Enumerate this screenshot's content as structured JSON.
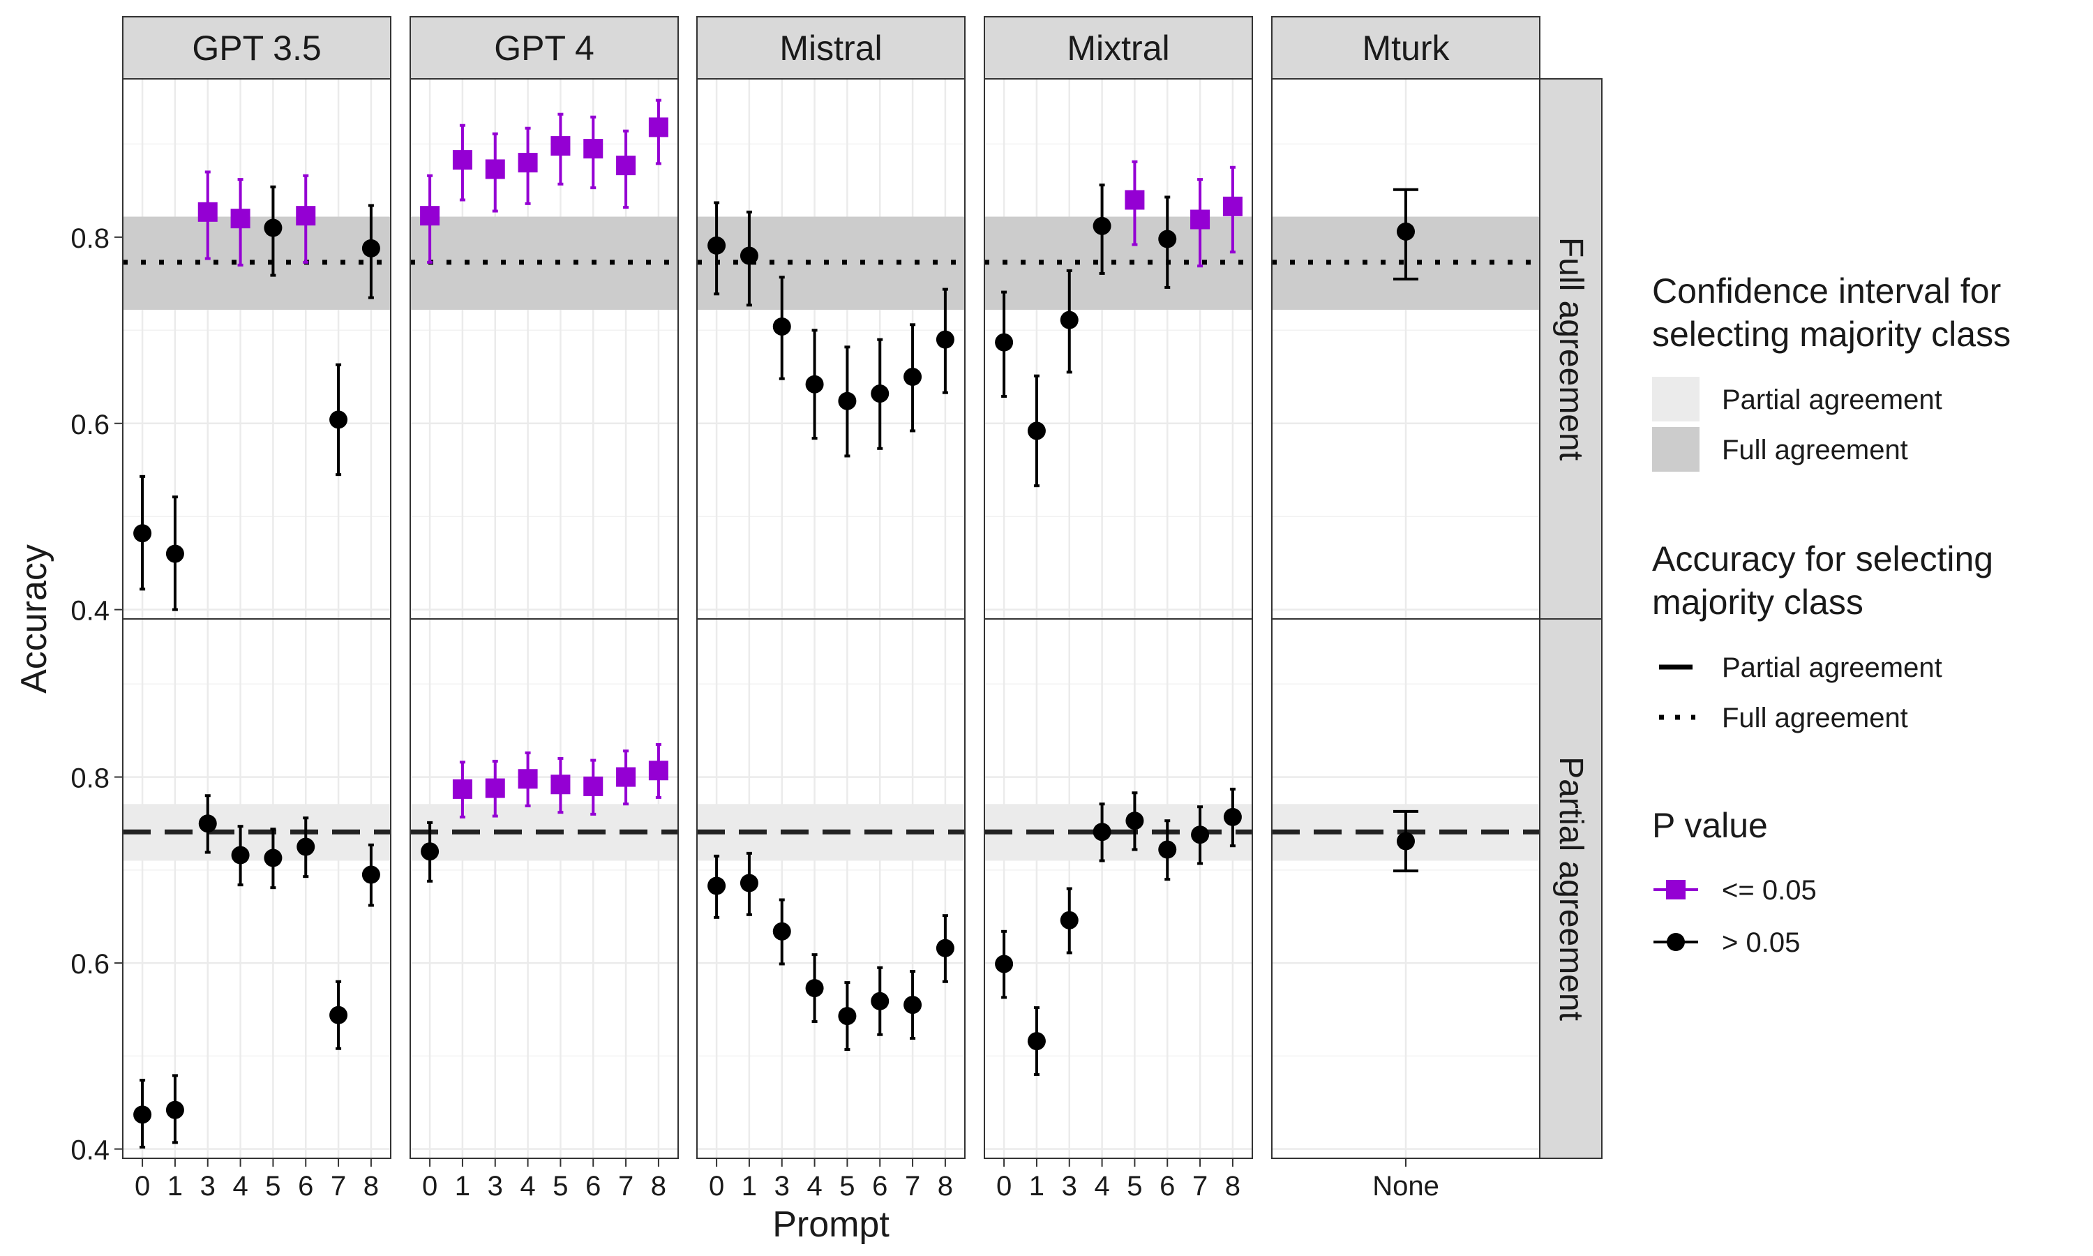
{
  "chart_data": {
    "type": "scatter",
    "ylabel": "Accuracy",
    "xlabel": "Prompt",
    "ylim": [
      0.39,
      0.97
    ],
    "yticks": [
      0.4,
      0.6,
      0.8
    ],
    "ytick_labels": [
      "0.4",
      "0.6",
      "0.8"
    ],
    "grid": true,
    "legend_position": "right",
    "facet_columns": [
      "GPT 3.5",
      "GPT 4",
      "Mistral",
      "Mixtral",
      "Mturk"
    ],
    "facet_rows": [
      "Full agreement",
      "Partial agreement"
    ],
    "colors": {
      "significant": "#9400d3",
      "not_significant": "#000000",
      "band_full": "#cccccc",
      "band_partial": "#ebebeb",
      "strip": "#d9d9d9"
    },
    "reference": {
      "Full agreement": {
        "line": 0.773,
        "band": [
          0.722,
          0.822
        ],
        "linetype": "dotted"
      },
      "Partial agreement": {
        "line": 0.741,
        "band": [
          0.71,
          0.771
        ],
        "linetype": "dashed"
      }
    },
    "panels": [
      {
        "model": "GPT 3.5",
        "row": "Full agreement",
        "x_labels": [
          "0",
          "1",
          "3",
          "4",
          "5",
          "6",
          "7",
          "8"
        ],
        "points": [
          {
            "x": "0",
            "y": 0.482,
            "lo": 0.422,
            "hi": 0.543,
            "sig": false
          },
          {
            "x": "1",
            "y": 0.46,
            "lo": 0.4,
            "hi": 0.521,
            "sig": false
          },
          {
            "x": "3",
            "y": 0.827,
            "lo": 0.777,
            "hi": 0.87,
            "sig": true
          },
          {
            "x": "4",
            "y": 0.82,
            "lo": 0.77,
            "hi": 0.862,
            "sig": true
          },
          {
            "x": "5",
            "y": 0.81,
            "lo": 0.759,
            "hi": 0.854,
            "sig": false
          },
          {
            "x": "6",
            "y": 0.823,
            "lo": 0.773,
            "hi": 0.866,
            "sig": true
          },
          {
            "x": "7",
            "y": 0.604,
            "lo": 0.545,
            "hi": 0.663,
            "sig": false
          },
          {
            "x": "8",
            "y": 0.788,
            "lo": 0.735,
            "hi": 0.834,
            "sig": false
          }
        ]
      },
      {
        "model": "GPT 4",
        "row": "Full agreement",
        "x_labels": [
          "0",
          "1",
          "3",
          "4",
          "5",
          "6",
          "7",
          "8"
        ],
        "points": [
          {
            "x": "0",
            "y": 0.823,
            "lo": 0.773,
            "hi": 0.866,
            "sig": true
          },
          {
            "x": "1",
            "y": 0.883,
            "lo": 0.84,
            "hi": 0.92,
            "sig": true
          },
          {
            "x": "3",
            "y": 0.873,
            "lo": 0.828,
            "hi": 0.911,
            "sig": true
          },
          {
            "x": "4",
            "y": 0.88,
            "lo": 0.836,
            "hi": 0.917,
            "sig": true
          },
          {
            "x": "5",
            "y": 0.898,
            "lo": 0.857,
            "hi": 0.932,
            "sig": true
          },
          {
            "x": "6",
            "y": 0.895,
            "lo": 0.853,
            "hi": 0.929,
            "sig": true
          },
          {
            "x": "7",
            "y": 0.877,
            "lo": 0.832,
            "hi": 0.914,
            "sig": true
          },
          {
            "x": "8",
            "y": 0.918,
            "lo": 0.879,
            "hi": 0.947,
            "sig": true
          }
        ]
      },
      {
        "model": "Mistral",
        "row": "Full agreement",
        "x_labels": [
          "0",
          "1",
          "3",
          "4",
          "5",
          "6",
          "7",
          "8"
        ],
        "points": [
          {
            "x": "0",
            "y": 0.791,
            "lo": 0.739,
            "hi": 0.837,
            "sig": false
          },
          {
            "x": "1",
            "y": 0.78,
            "lo": 0.727,
            "hi": 0.827,
            "sig": false
          },
          {
            "x": "3",
            "y": 0.704,
            "lo": 0.648,
            "hi": 0.757,
            "sig": false
          },
          {
            "x": "4",
            "y": 0.642,
            "lo": 0.584,
            "hi": 0.7,
            "sig": false
          },
          {
            "x": "5",
            "y": 0.624,
            "lo": 0.565,
            "hi": 0.682,
            "sig": false
          },
          {
            "x": "6",
            "y": 0.632,
            "lo": 0.573,
            "hi": 0.69,
            "sig": false
          },
          {
            "x": "7",
            "y": 0.65,
            "lo": 0.592,
            "hi": 0.706,
            "sig": false
          },
          {
            "x": "8",
            "y": 0.69,
            "lo": 0.633,
            "hi": 0.744,
            "sig": false
          }
        ]
      },
      {
        "model": "Mixtral",
        "row": "Full agreement",
        "x_labels": [
          "0",
          "1",
          "3",
          "4",
          "5",
          "6",
          "7",
          "8"
        ],
        "points": [
          {
            "x": "0",
            "y": 0.687,
            "lo": 0.629,
            "hi": 0.741,
            "sig": false
          },
          {
            "x": "1",
            "y": 0.592,
            "lo": 0.533,
            "hi": 0.651,
            "sig": false
          },
          {
            "x": "3",
            "y": 0.711,
            "lo": 0.655,
            "hi": 0.764,
            "sig": false
          },
          {
            "x": "4",
            "y": 0.812,
            "lo": 0.761,
            "hi": 0.856,
            "sig": false
          },
          {
            "x": "5",
            "y": 0.84,
            "lo": 0.792,
            "hi": 0.881,
            "sig": true
          },
          {
            "x": "6",
            "y": 0.798,
            "lo": 0.746,
            "hi": 0.843,
            "sig": false
          },
          {
            "x": "7",
            "y": 0.819,
            "lo": 0.769,
            "hi": 0.862,
            "sig": true
          },
          {
            "x": "8",
            "y": 0.833,
            "lo": 0.784,
            "hi": 0.875,
            "sig": true
          }
        ]
      },
      {
        "model": "Mturk",
        "row": "Full agreement",
        "x_labels": [
          "None"
        ],
        "points": [
          {
            "x": "None",
            "y": 0.806,
            "lo": 0.755,
            "hi": 0.851,
            "sig": false,
            "caps": true
          }
        ]
      },
      {
        "model": "GPT 3.5",
        "row": "Partial agreement",
        "x_labels": [
          "0",
          "1",
          "3",
          "4",
          "5",
          "6",
          "7",
          "8"
        ],
        "points": [
          {
            "x": "0",
            "y": 0.437,
            "lo": 0.402,
            "hi": 0.474,
            "sig": false
          },
          {
            "x": "1",
            "y": 0.442,
            "lo": 0.407,
            "hi": 0.479,
            "sig": false
          },
          {
            "x": "3",
            "y": 0.75,
            "lo": 0.719,
            "hi": 0.78,
            "sig": false
          },
          {
            "x": "4",
            "y": 0.716,
            "lo": 0.684,
            "hi": 0.747,
            "sig": false
          },
          {
            "x": "5",
            "y": 0.713,
            "lo": 0.681,
            "hi": 0.744,
            "sig": false
          },
          {
            "x": "6",
            "y": 0.725,
            "lo": 0.693,
            "hi": 0.756,
            "sig": false
          },
          {
            "x": "7",
            "y": 0.544,
            "lo": 0.508,
            "hi": 0.58,
            "sig": false
          },
          {
            "x": "8",
            "y": 0.695,
            "lo": 0.662,
            "hi": 0.727,
            "sig": false
          }
        ]
      },
      {
        "model": "GPT 4",
        "row": "Partial agreement",
        "x_labels": [
          "0",
          "1",
          "3",
          "4",
          "5",
          "6",
          "7",
          "8"
        ],
        "points": [
          {
            "x": "0",
            "y": 0.72,
            "lo": 0.688,
            "hi": 0.751,
            "sig": false
          },
          {
            "x": "1",
            "y": 0.787,
            "lo": 0.757,
            "hi": 0.816,
            "sig": true
          },
          {
            "x": "3",
            "y": 0.788,
            "lo": 0.758,
            "hi": 0.817,
            "sig": true
          },
          {
            "x": "4",
            "y": 0.798,
            "lo": 0.769,
            "hi": 0.826,
            "sig": true
          },
          {
            "x": "5",
            "y": 0.792,
            "lo": 0.762,
            "hi": 0.82,
            "sig": true
          },
          {
            "x": "6",
            "y": 0.79,
            "lo": 0.76,
            "hi": 0.818,
            "sig": true
          },
          {
            "x": "7",
            "y": 0.8,
            "lo": 0.771,
            "hi": 0.828,
            "sig": true
          },
          {
            "x": "8",
            "y": 0.807,
            "lo": 0.778,
            "hi": 0.835,
            "sig": true
          }
        ]
      },
      {
        "model": "Mistral",
        "row": "Partial agreement",
        "x_labels": [
          "0",
          "1",
          "3",
          "4",
          "5",
          "6",
          "7",
          "8"
        ],
        "points": [
          {
            "x": "0",
            "y": 0.683,
            "lo": 0.649,
            "hi": 0.715,
            "sig": false
          },
          {
            "x": "1",
            "y": 0.686,
            "lo": 0.652,
            "hi": 0.718,
            "sig": false
          },
          {
            "x": "3",
            "y": 0.634,
            "lo": 0.599,
            "hi": 0.668,
            "sig": false
          },
          {
            "x": "4",
            "y": 0.573,
            "lo": 0.537,
            "hi": 0.609,
            "sig": false
          },
          {
            "x": "5",
            "y": 0.543,
            "lo": 0.507,
            "hi": 0.579,
            "sig": false
          },
          {
            "x": "6",
            "y": 0.559,
            "lo": 0.523,
            "hi": 0.595,
            "sig": false
          },
          {
            "x": "7",
            "y": 0.555,
            "lo": 0.519,
            "hi": 0.591,
            "sig": false
          },
          {
            "x": "8",
            "y": 0.616,
            "lo": 0.58,
            "hi": 0.651,
            "sig": false
          }
        ]
      },
      {
        "model": "Mixtral",
        "row": "Partial agreement",
        "x_labels": [
          "0",
          "1",
          "3",
          "4",
          "5",
          "6",
          "7",
          "8"
        ],
        "points": [
          {
            "x": "0",
            "y": 0.599,
            "lo": 0.563,
            "hi": 0.634,
            "sig": false
          },
          {
            "x": "1",
            "y": 0.516,
            "lo": 0.48,
            "hi": 0.552,
            "sig": false
          },
          {
            "x": "3",
            "y": 0.646,
            "lo": 0.611,
            "hi": 0.68,
            "sig": false
          },
          {
            "x": "4",
            "y": 0.741,
            "lo": 0.71,
            "hi": 0.771,
            "sig": false
          },
          {
            "x": "5",
            "y": 0.753,
            "lo": 0.722,
            "hi": 0.783,
            "sig": false
          },
          {
            "x": "6",
            "y": 0.722,
            "lo": 0.69,
            "hi": 0.753,
            "sig": false
          },
          {
            "x": "7",
            "y": 0.738,
            "lo": 0.707,
            "hi": 0.768,
            "sig": false
          },
          {
            "x": "8",
            "y": 0.757,
            "lo": 0.726,
            "hi": 0.787,
            "sig": false
          }
        ]
      },
      {
        "model": "Mturk",
        "row": "Partial agreement",
        "x_labels": [
          "None"
        ],
        "points": [
          {
            "x": "None",
            "y": 0.731,
            "lo": 0.699,
            "hi": 0.763,
            "sig": false,
            "caps": true
          }
        ]
      }
    ],
    "legend": {
      "ci_title_lines": [
        "Confidence interval for",
        "selecting majority class"
      ],
      "ci_items": [
        "Partial agreement",
        "Full agreement"
      ],
      "acc_title_lines": [
        "Accuracy for selecting",
        "majority class"
      ],
      "acc_items": [
        "Partial agreement",
        "Full agreement"
      ],
      "p_title": "P value",
      "p_items": [
        "<= 0.05",
        "> 0.05"
      ]
    }
  }
}
